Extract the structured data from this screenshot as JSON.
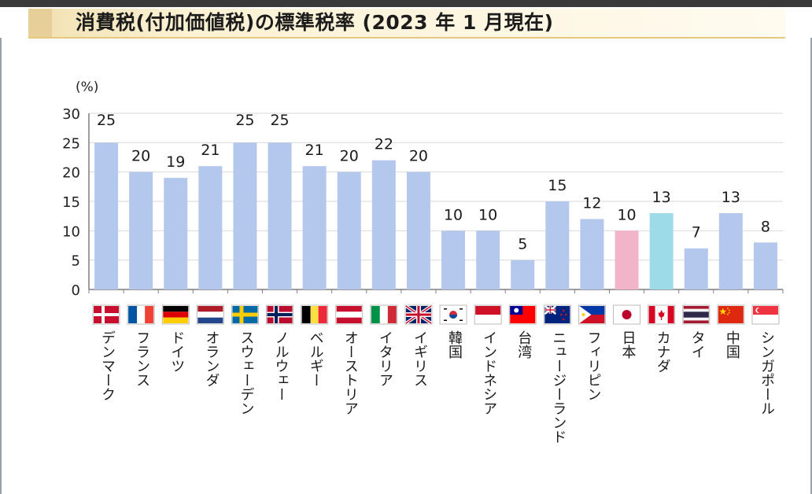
{
  "title": "消費税(付加価値税)の標準税率 (2023 年 1 月現在)",
  "colors": {
    "default_bar": "#b4c8ee",
    "japan_bar": "#f2b4c8",
    "canada_bar": "#9edbe9"
  },
  "chart_data": {
    "type": "bar",
    "unit_label": "(%)",
    "ylim": [
      0,
      30
    ],
    "yticks": [
      0,
      5,
      10,
      15,
      20,
      25,
      30
    ],
    "grid": true,
    "categories": [
      "デンマーク",
      "フランス",
      "ドイツ",
      "オランダ",
      "スウェーデン",
      "ノルウェー",
      "ベルギー",
      "オーストリア",
      "イタリア",
      "イギリス",
      "韓国",
      "インドネシア",
      "台湾",
      "ニュージーランド",
      "フィリピン",
      "日本",
      "カナダ",
      "タイ",
      "中国",
      "シンガポール"
    ],
    "values": [
      25,
      20,
      19,
      21,
      25,
      25,
      21,
      20,
      22,
      20,
      10,
      10,
      5,
      15,
      12,
      10,
      13,
      7,
      13,
      8
    ],
    "value_labels": [
      "25",
      "20",
      "19",
      "21",
      "25",
      "25",
      "21",
      "20",
      "22",
      "20",
      "10",
      "10",
      "5",
      "15",
      "12",
      "10",
      "13",
      "7",
      "13",
      "8"
    ],
    "flags": [
      "denmark-flag",
      "france-flag",
      "germany-flag",
      "netherlands-flag",
      "sweden-flag",
      "norway-flag",
      "belgium-flag",
      "austria-flag",
      "italy-flag",
      "uk-flag",
      "korea-flag",
      "indonesia-flag",
      "taiwan-flag",
      "new-zealand-flag",
      "philippines-flag",
      "japan-flag",
      "canada-flag",
      "thailand-flag",
      "china-flag",
      "singapore-flag"
    ],
    "highlight": {
      "日本": "japan_bar",
      "カナダ": "canada_bar"
    }
  }
}
